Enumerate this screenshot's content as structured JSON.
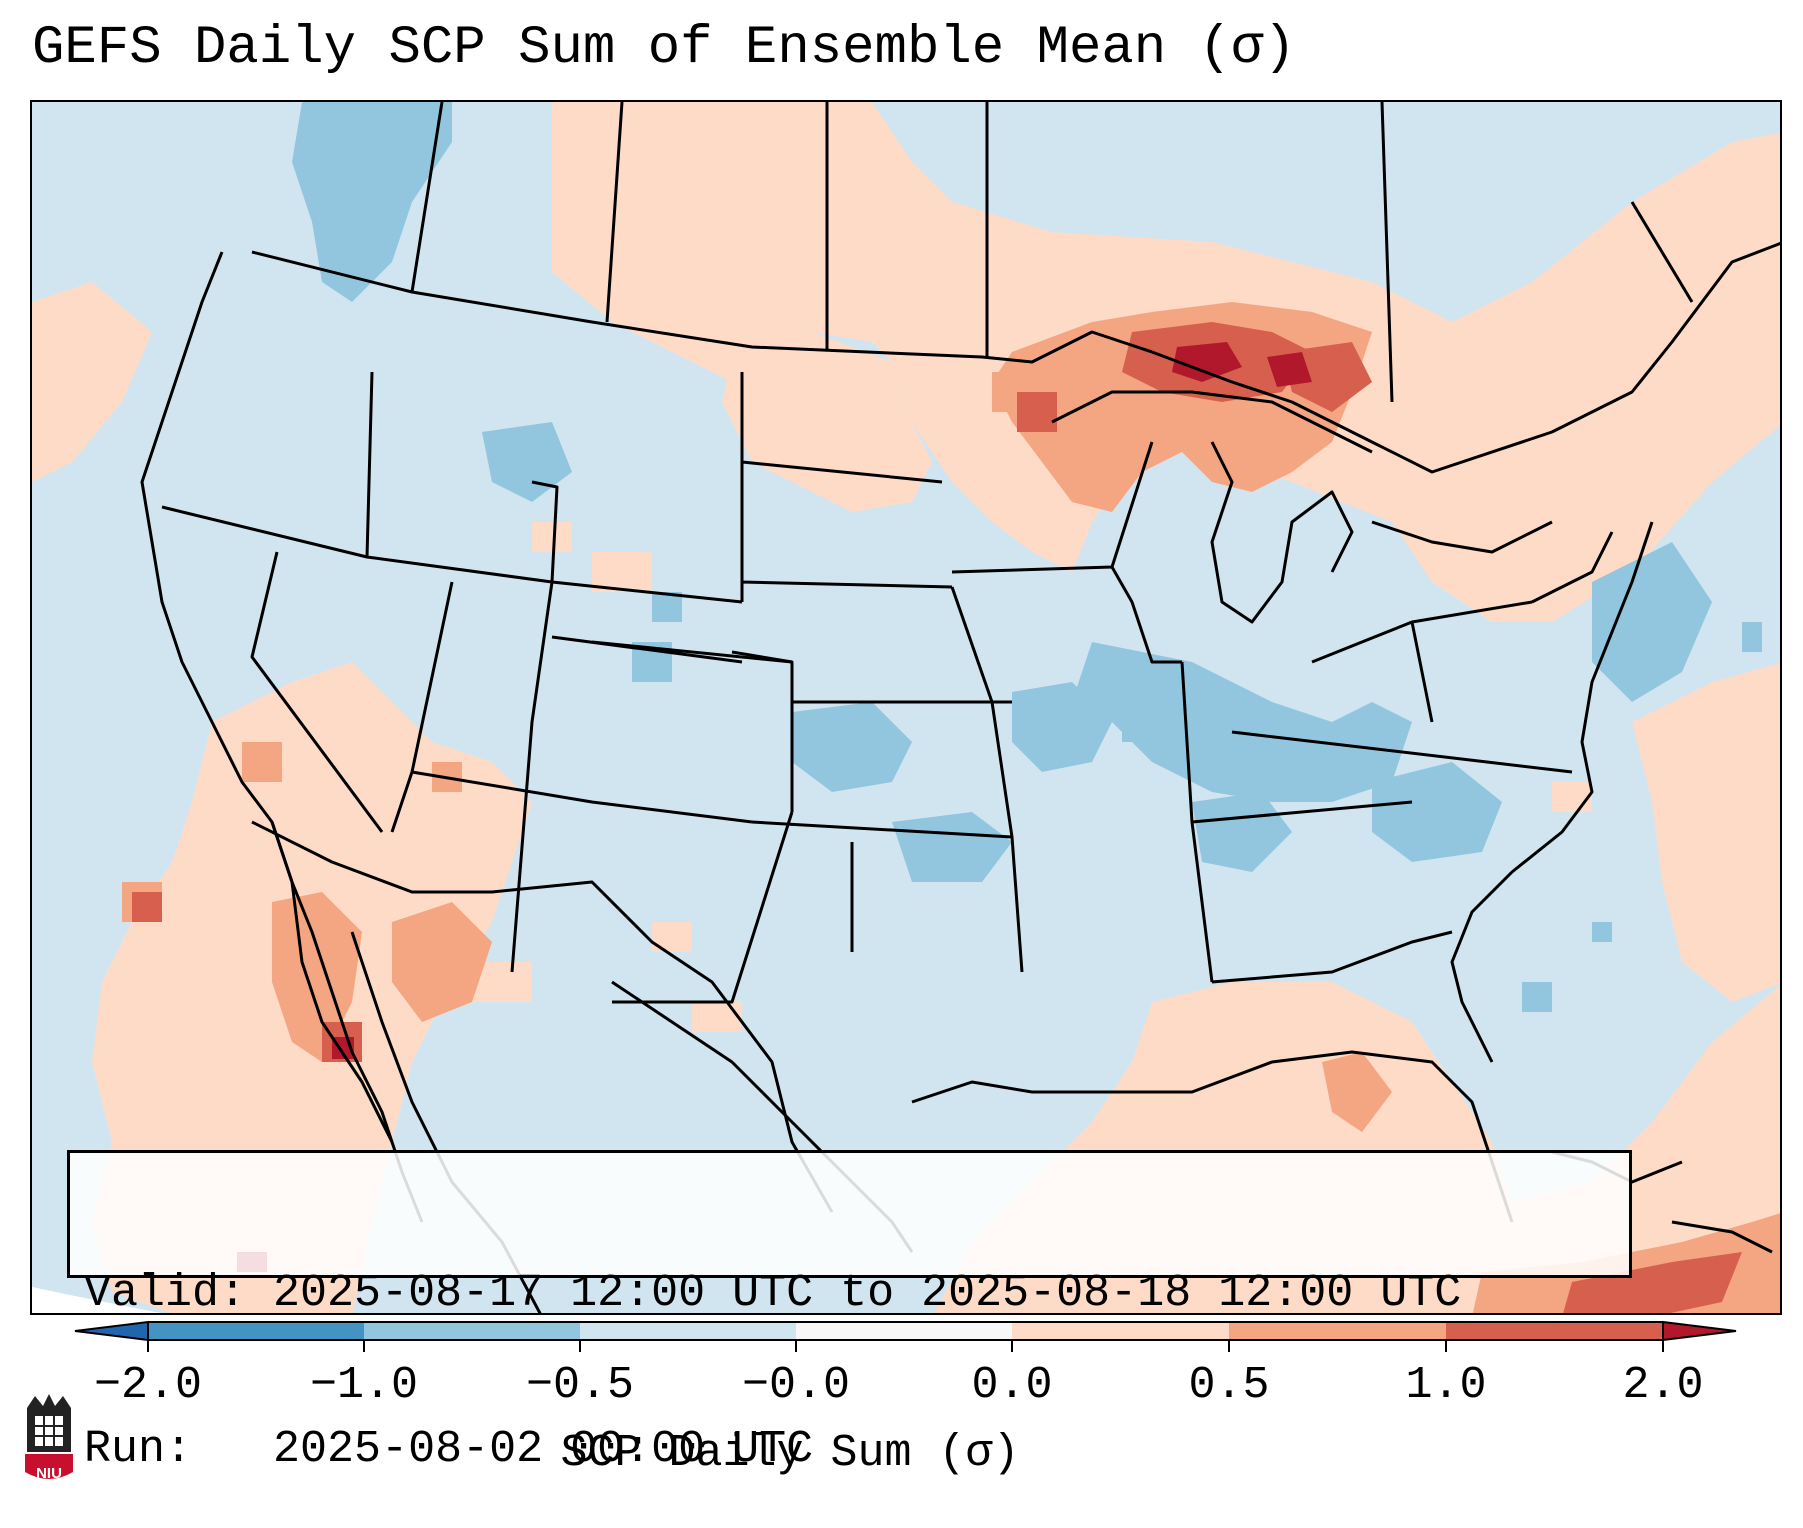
{
  "title": "GEFS Daily SCP Sum of Ensemble Mean (σ)",
  "info_box": {
    "valid_label": "Valid:",
    "valid_value": "2025-08-17 12:00 UTC to 2025-08-18 12:00 UTC",
    "run_label": "Run:",
    "run_value": "2025-08-02 00:00 UTC"
  },
  "colorbar": {
    "label": "SCP Daily Sum (σ)",
    "ticks": [
      "−2.0",
      "−1.0",
      "−0.5",
      "−0.0",
      "0.0",
      "0.5",
      "1.0",
      "2.0"
    ],
    "bins": [
      {
        "range": "< -2.0",
        "color": "#2166ac"
      },
      {
        "range": "-2.0 to -1.0",
        "color": "#4393c3"
      },
      {
        "range": "-1.0 to -0.5",
        "color": "#92c5de"
      },
      {
        "range": "-0.5 to -0.0",
        "color": "#d1e5f0"
      },
      {
        "range": "-0.0 to 0.0",
        "color": "#f7f7f7"
      },
      {
        "range": "0.0 to 0.5",
        "color": "#fddbc7"
      },
      {
        "range": "0.5 to 1.0",
        "color": "#f4a582"
      },
      {
        "range": "1.0 to 2.0",
        "color": "#d6604d"
      },
      {
        "range": "> 2.0",
        "color": "#b2182b"
      }
    ]
  },
  "map": {
    "region": "Contiguous United States",
    "background_color": "#d1e5f0",
    "labeled_features": []
  },
  "logo": {
    "text": "NIU",
    "icon": "niu-logo-icon"
  }
}
